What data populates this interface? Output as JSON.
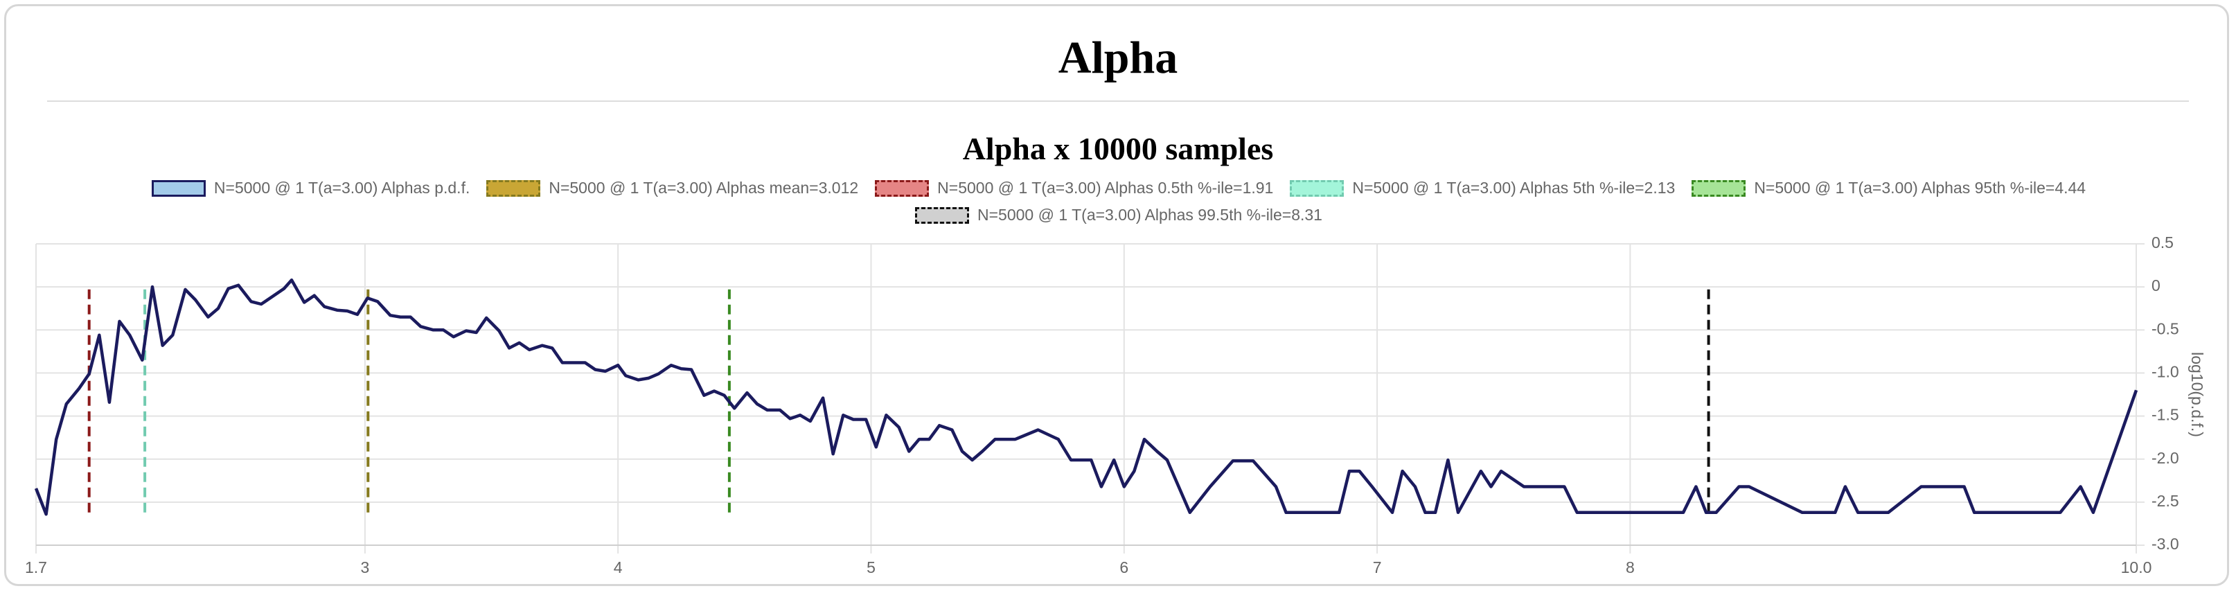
{
  "page": {
    "title": "Alpha"
  },
  "chart_data": {
    "type": "line",
    "title": "Alpha x 10000 samples",
    "y_label": "log10(p.d.f.)",
    "xlim": [
      1.7,
      10
    ],
    "ylim": [
      -3,
      0.5
    ],
    "xticks": [
      1.7,
      3,
      4,
      5,
      6,
      7,
      8,
      {
        "value": 10,
        "label": "10.0"
      }
    ],
    "yticks": [
      0.5,
      0,
      -0.5,
      {
        "value": -1,
        "label": "-1.0"
      },
      -1.5,
      {
        "value": -2,
        "label": "-2.0"
      },
      -2.5,
      {
        "value": -3,
        "label": "-3.0"
      }
    ],
    "grid": true,
    "series": [
      {
        "name": "N=5000 @ 1 T(a=3.00) Alphas p.d.f.",
        "color": "#1b1b5e",
        "fill": "#a3cbe9",
        "dashed": false,
        "x": [
          1.7,
          1.74,
          1.78,
          1.82,
          1.87,
          1.91,
          1.95,
          1.99,
          2.03,
          2.07,
          2.12,
          2.16,
          2.2,
          2.24,
          2.29,
          2.33,
          2.38,
          2.42,
          2.46,
          2.5,
          2.55,
          2.59,
          2.63,
          2.68,
          2.71,
          2.76,
          2.8,
          2.84,
          2.89,
          2.93,
          2.97,
          3.01,
          3.05,
          3.1,
          3.14,
          3.18,
          3.22,
          3.27,
          3.31,
          3.35,
          3.4,
          3.44,
          3.48,
          3.53,
          3.57,
          3.61,
          3.65,
          3.7,
          3.74,
          3.78,
          3.83,
          3.87,
          3.91,
          3.95,
          4.0,
          4.03,
          4.08,
          4.12,
          4.16,
          4.21,
          4.25,
          4.29,
          4.34,
          4.38,
          4.42,
          4.46,
          4.51,
          4.55,
          4.59,
          4.64,
          4.68,
          4.72,
          4.76,
          4.81,
          4.85,
          4.89,
          4.93,
          4.98,
          5.02,
          5.06,
          5.11,
          5.15,
          5.19,
          5.23,
          5.27,
          5.32,
          5.36,
          5.4,
          5.44,
          5.49,
          5.57,
          5.66,
          5.74,
          5.79,
          5.87,
          5.91,
          5.96,
          6.0,
          6.04,
          6.08,
          6.13,
          6.17,
          6.26,
          6.34,
          6.43,
          6.51,
          6.6,
          6.64,
          6.85,
          6.89,
          6.93,
          6.98,
          7.06,
          7.1,
          7.15,
          7.19,
          7.23,
          7.28,
          7.32,
          7.41,
          7.45,
          7.49,
          7.58,
          7.74,
          7.79,
          8.21,
          8.26,
          8.3,
          8.34,
          8.43,
          8.47,
          8.68,
          8.81,
          8.85,
          8.9,
          9.02,
          9.15,
          9.32,
          9.36,
          9.7,
          9.78,
          9.83,
          10.0
        ],
        "values": [
          -2.34,
          -2.64,
          -1.77,
          -1.36,
          -1.18,
          -1.01,
          -0.56,
          -1.34,
          -0.4,
          -0.56,
          -0.85,
          0,
          -0.68,
          -0.56,
          -0.03,
          -0.15,
          -0.35,
          -0.25,
          -0.02,
          0.02,
          -0.17,
          -0.2,
          -0.12,
          -0.02,
          0.08,
          -0.18,
          -0.1,
          -0.23,
          -0.27,
          -0.28,
          -0.32,
          -0.13,
          -0.17,
          -0.33,
          -0.35,
          -0.35,
          -0.46,
          -0.5,
          -0.5,
          -0.58,
          -0.51,
          -0.53,
          -0.36,
          -0.51,
          -0.71,
          -0.65,
          -0.73,
          -0.68,
          -0.71,
          -0.88,
          -0.88,
          -0.88,
          -0.96,
          -0.98,
          -0.91,
          -1.03,
          -1.08,
          -1.06,
          -1.01,
          -0.91,
          -0.95,
          -0.96,
          -1.26,
          -1.21,
          -1.26,
          -1.41,
          -1.23,
          -1.36,
          -1.43,
          -1.43,
          -1.53,
          -1.49,
          -1.56,
          -1.29,
          -1.94,
          -1.49,
          -1.54,
          -1.54,
          -1.86,
          -1.49,
          -1.63,
          -1.91,
          -1.77,
          -1.77,
          -1.61,
          -1.66,
          -1.91,
          -2.01,
          -1.91,
          -1.77,
          -1.77,
          -1.66,
          -1.77,
          -2.01,
          -2.01,
          -2.32,
          -2.01,
          -2.32,
          -2.14,
          -1.77,
          -1.91,
          -2.01,
          -2.62,
          -2.32,
          -2.02,
          -2.02,
          -2.32,
          -2.62,
          -2.62,
          -2.14,
          -2.14,
          -2.32,
          -2.62,
          -2.14,
          -2.32,
          -2.62,
          -2.62,
          -2.01,
          -2.62,
          -2.14,
          -2.32,
          -2.14,
          -2.32,
          -2.32,
          -2.62,
          -2.62,
          -2.32,
          -2.62,
          -2.62,
          -2.32,
          -2.32,
          -2.62,
          -2.62,
          -2.32,
          -2.62,
          -2.62,
          -2.32,
          -2.32,
          -2.62,
          -2.62,
          -2.32,
          -2.62,
          -1.2
        ]
      },
      {
        "name": "N=5000 @ 1 T(a=3.00) Alphas mean=3.012",
        "color": "#857a1f",
        "fill": "#c9a635",
        "dashed": true,
        "x": [
          3.012,
          3.012
        ],
        "values": [
          -2.62,
          0
        ]
      },
      {
        "name": "N=5000 @ 1 T(a=3.00) Alphas 0.5th %-ile=1.91",
        "color": "#8b1a1a",
        "fill": "#e58585",
        "dashed": true,
        "x": [
          1.91,
          1.91
        ],
        "values": [
          -2.62,
          0
        ]
      },
      {
        "name": "N=5000 @ 1 T(a=3.00) Alphas 5th %-ile=2.13",
        "color": "#72cbb0",
        "fill": "#a3f5da",
        "dashed": true,
        "x": [
          2.13,
          2.13
        ],
        "values": [
          -2.62,
          0
        ]
      },
      {
        "name": "N=5000 @ 1 T(a=3.00) Alphas 95th %-ile=4.44",
        "color": "#3a8a22",
        "fill": "#a6e497",
        "dashed": true,
        "x": [
          4.44,
          4.44
        ],
        "values": [
          -2.62,
          0
        ]
      },
      {
        "name": "N=5000 @ 1 T(a=3.00) Alphas 99.5th %-ile=8.31",
        "color": "#111111",
        "fill": "#d0d0d0",
        "dashed": true,
        "x": [
          8.31,
          8.31
        ],
        "values": [
          -2.62,
          0
        ]
      }
    ]
  }
}
